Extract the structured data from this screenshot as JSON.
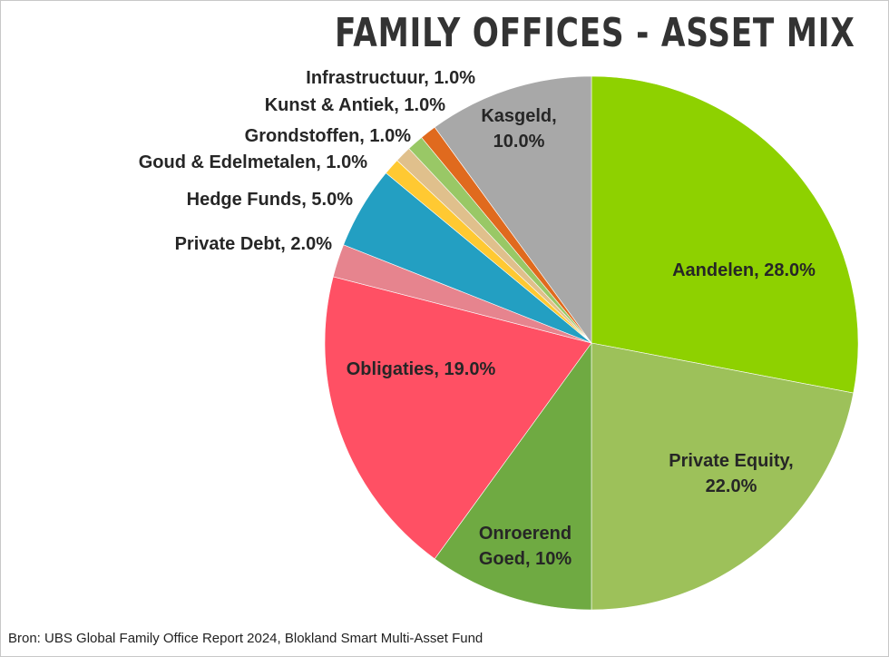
{
  "chart_data": {
    "type": "pie",
    "title": "FAMILY OFFICES - ASSET MIX",
    "slices": [
      {
        "name": "Aandelen",
        "value": 28.0,
        "color": "#8ED100",
        "label_lines": [
          "Aandelen, 28.0%"
        ]
      },
      {
        "name": "Private Equity",
        "value": 22.0,
        "color": "#9DC15A",
        "label_lines": [
          "Private Equity,",
          "22.0%"
        ]
      },
      {
        "name": "Onroerend Goed",
        "value": 10.0,
        "color": "#6FAA42",
        "label_lines": [
          "Onroerend",
          "Goed, 10%"
        ]
      },
      {
        "name": "Obligaties",
        "value": 19.0,
        "color": "#FF5064",
        "label_lines": [
          "Obligaties, 19.0%"
        ]
      },
      {
        "name": "Private Debt",
        "value": 2.0,
        "color": "#E6848E",
        "label_lines": [
          "Private Debt, 2.0%"
        ]
      },
      {
        "name": "Hedge Funds",
        "value": 5.0,
        "color": "#239FC2",
        "label_lines": [
          "Hedge Funds, 5.0%"
        ]
      },
      {
        "name": "Goud & Edelmetalen",
        "value": 1.0,
        "color": "#FFC932",
        "label_lines": [
          "Goud & Edelmetalen, 1.0%"
        ]
      },
      {
        "name": "Grondstoffen",
        "value": 1.0,
        "color": "#E0C08C",
        "label_lines": [
          "Grondstoffen, 1.0%"
        ]
      },
      {
        "name": "Kunst & Antiek",
        "value": 1.0,
        "color": "#99C866",
        "label_lines": [
          "Kunst & Antiek, 1.0%"
        ]
      },
      {
        "name": "Infrastructuur",
        "value": 1.0,
        "color": "#E06A1E",
        "label_lines": [
          "Infrastructuur, 1.0%"
        ]
      },
      {
        "name": "Kasgeld",
        "value": 10.0,
        "color": "#A8A8A8",
        "label_lines": [
          "Kasgeld,",
          "10.0%"
        ]
      }
    ]
  },
  "footer": {
    "source": "Bron: UBS Global Family Office Report 2024, Blokland Smart Multi-Asset Fund"
  }
}
